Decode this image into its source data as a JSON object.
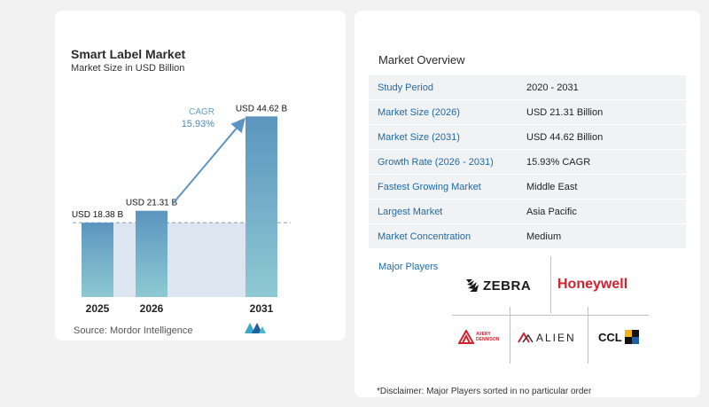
{
  "chart": {
    "title": "Smart Label Market",
    "subtitle": "Market Size in USD Billion",
    "source": "Source:  Mordor Intelligence",
    "cagr_label": "CAGR",
    "cagr_value": "15.93%"
  },
  "chart_data": {
    "type": "bar",
    "title": "Smart Label Market",
    "subtitle": "Market Size in USD Billion",
    "categories": [
      "2025",
      "2026",
      "2031"
    ],
    "values": [
      18.38,
      21.31,
      44.62
    ],
    "data_labels": [
      "USD 18.38 B",
      "USD 21.31 B",
      "USD 44.62 B"
    ],
    "ylim": [
      0,
      46
    ],
    "grid": false,
    "cagr": "15.93%",
    "colors": {
      "bar_top": "#5b95bf",
      "bar_bottom": "#8ec9d3",
      "band": "#dde6f0",
      "arrow": "#5b94c3"
    }
  },
  "overview": {
    "title": "Market Overview",
    "rows": [
      {
        "key": "Study Period",
        "value": "2020 - 2031"
      },
      {
        "key": "Market Size (2026)",
        "value": "USD 21.31 Billion"
      },
      {
        "key": "Market Size (2031)",
        "value": "USD 44.62 Billion"
      },
      {
        "key": "Growth Rate (2026 - 2031)",
        "value": "15.93% CAGR"
      },
      {
        "key": "Fastest Growing Market",
        "value": "Middle East"
      },
      {
        "key": "Largest Market",
        "value": "Asia Pacific"
      },
      {
        "key": "Market Concentration",
        "value": "Medium"
      }
    ],
    "players_title": "Major Players",
    "players": [
      "ZEBRA",
      "Honeywell",
      "AVERY DENNISON",
      "ALIEN",
      "CCL"
    ],
    "disclaimer": "*Disclaimer: Major Players sorted in no particular order"
  }
}
